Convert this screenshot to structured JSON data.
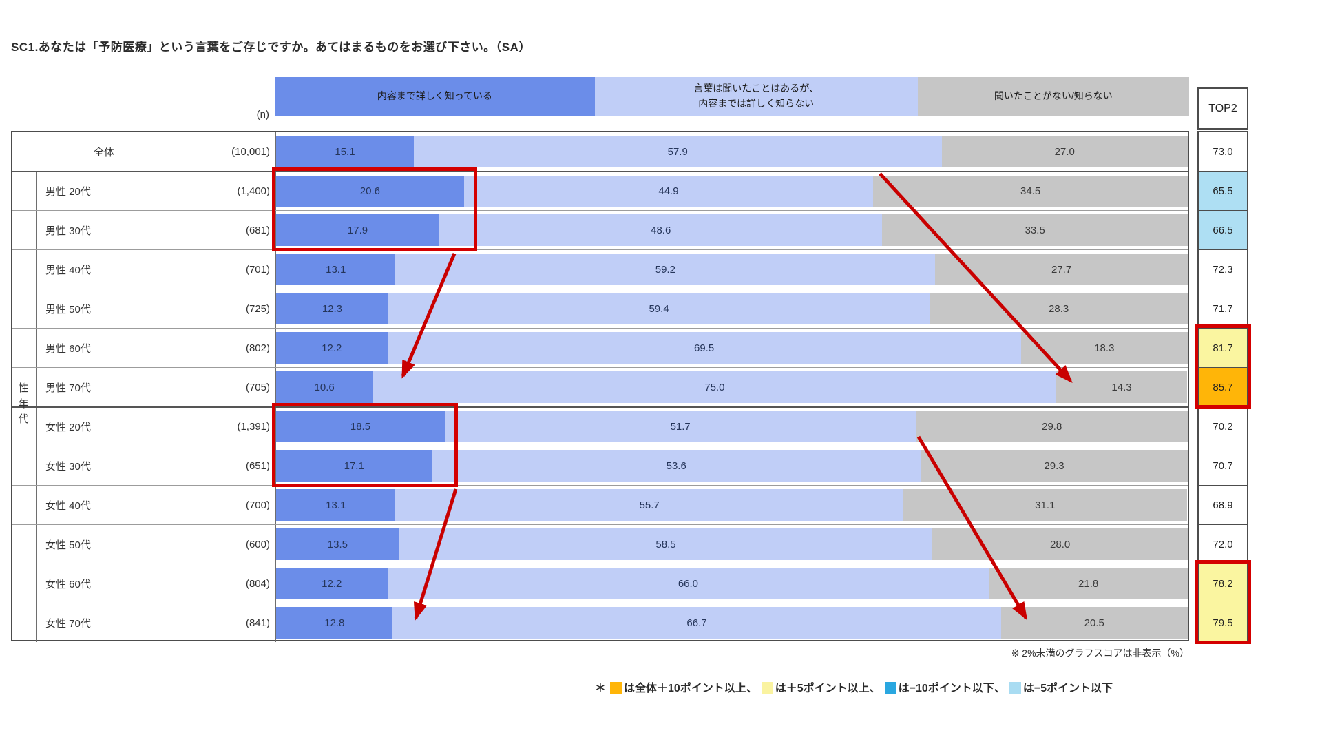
{
  "title": "SC1.あなたは「予防医療」という言葉をご存じですか。あてはまるものをお選び下さい。（SA）",
  "columns": {
    "n_label": "(n)",
    "top2_label": "TOP2"
  },
  "group_label": "性年代",
  "segments": [
    {
      "name": "know-well",
      "label_lines": [
        "内容まで詳しく知っている"
      ],
      "color": "#6b8de9",
      "header_width_pct": 35.0
    },
    {
      "name": "heard-but-not-detail",
      "label_lines": [
        "言葉は聞いたことはあるが、",
        "内容までは詳しく知らない"
      ],
      "color": "#c0cef7",
      "header_width_pct": 35.3
    },
    {
      "name": "never-heard",
      "label_lines": [
        "聞いたことがない/知らない"
      ],
      "color": "#c6c6c6",
      "header_width_pct": 29.7
    }
  ],
  "rows": [
    {
      "label": "全体",
      "n": "(10,001)",
      "values": [
        "15.1",
        "57.9",
        "27.0"
      ],
      "top2": "73.0",
      "top2_style": "none"
    },
    {
      "label": "男性 20代",
      "n": "(1,400)",
      "values": [
        "20.6",
        "44.9",
        "34.5"
      ],
      "top2": "65.5",
      "top2_style": "blue"
    },
    {
      "label": "男性 30代",
      "n": "(681)",
      "values": [
        "17.9",
        "48.6",
        "33.5"
      ],
      "top2": "66.5",
      "top2_style": "blue"
    },
    {
      "label": "男性 40代",
      "n": "(701)",
      "values": [
        "13.1",
        "59.2",
        "27.7"
      ],
      "top2": "72.3",
      "top2_style": "none"
    },
    {
      "label": "男性 50代",
      "n": "(725)",
      "values": [
        "12.3",
        "59.4",
        "28.3"
      ],
      "top2": "71.7",
      "top2_style": "none"
    },
    {
      "label": "男性 60代",
      "n": "(802)",
      "values": [
        "12.2",
        "69.5",
        "18.3"
      ],
      "top2": "81.7",
      "top2_style": "yellow"
    },
    {
      "label": "男性 70代",
      "n": "(705)",
      "values": [
        "10.6",
        "75.0",
        "14.3"
      ],
      "top2": "85.7",
      "top2_style": "orange"
    },
    {
      "label": "女性 20代",
      "n": "(1,391)",
      "values": [
        "18.5",
        "51.7",
        "29.8"
      ],
      "top2": "70.2",
      "top2_style": "none"
    },
    {
      "label": "女性 30代",
      "n": "(651)",
      "values": [
        "17.1",
        "53.6",
        "29.3"
      ],
      "top2": "70.7",
      "top2_style": "none"
    },
    {
      "label": "女性 40代",
      "n": "(700)",
      "values": [
        "13.1",
        "55.7",
        "31.1"
      ],
      "top2": "68.9",
      "top2_style": "none"
    },
    {
      "label": "女性 50代",
      "n": "(600)",
      "values": [
        "13.5",
        "58.5",
        "28.0"
      ],
      "top2": "72.0",
      "top2_style": "none"
    },
    {
      "label": "女性 60代",
      "n": "(804)",
      "values": [
        "12.2",
        "66.0",
        "21.8"
      ],
      "top2": "78.2",
      "top2_style": "yellow"
    },
    {
      "label": "女性 70代",
      "n": "(841)",
      "values": [
        "12.8",
        "66.7",
        "20.5"
      ],
      "top2": "79.5",
      "top2_style": "yellow"
    }
  ],
  "footnote": "※ 2%未満のグラフスコアは非表示（%）",
  "legend": {
    "prefix": "＊",
    "items": [
      {
        "color": "#ffb508",
        "text": "は全体＋10ポイント以上、"
      },
      {
        "color": "#faf3a0",
        "text": "は＋5ポイント以上、"
      },
      {
        "color": "#2aa7e0",
        "text": "は−10ポイント以下、"
      },
      {
        "color": "#a9dcf2",
        "text": "は−5ポイント以下"
      }
    ]
  },
  "highlight_colors": {
    "top2_blue": "#aedff3",
    "top2_yellow": "#faf5a0",
    "top2_orange": "#ffb508",
    "annotation_red": "#d40000"
  },
  "chart_data": {
    "type": "bar",
    "orientation": "horizontal-stacked-100pct",
    "title": "SC1.あなたは「予防医療」という言葉をご存じですか。あてはまるものをお選び下さい。（SA）",
    "categories": [
      "全体",
      "男性 20代",
      "男性 30代",
      "男性 40代",
      "男性 50代",
      "男性 60代",
      "男性 70代",
      "女性 20代",
      "女性 30代",
      "女性 40代",
      "女性 50代",
      "女性 60代",
      "女性 70代"
    ],
    "n": [
      10001,
      1400,
      681,
      701,
      725,
      802,
      705,
      1391,
      651,
      700,
      600,
      804,
      841
    ],
    "series": [
      {
        "name": "内容まで詳しく知っている",
        "color": "#6b8de9",
        "values": [
          15.1,
          20.6,
          17.9,
          13.1,
          12.3,
          12.2,
          10.6,
          18.5,
          17.1,
          13.1,
          13.5,
          12.2,
          12.8
        ]
      },
      {
        "name": "言葉は聞いたことはあるが、内容までは詳しく知らない",
        "color": "#c0cef7",
        "values": [
          57.9,
          44.9,
          48.6,
          59.2,
          59.4,
          69.5,
          75.0,
          51.7,
          53.6,
          55.7,
          58.5,
          66.0,
          66.7
        ]
      },
      {
        "name": "聞いたことがない/知らない",
        "color": "#c6c6c6",
        "values": [
          27.0,
          34.5,
          33.5,
          27.7,
          28.3,
          18.3,
          14.3,
          29.8,
          29.3,
          31.1,
          28.0,
          21.8,
          20.5
        ]
      }
    ],
    "top2": [
      73.0,
      65.5,
      66.5,
      72.3,
      71.7,
      81.7,
      85.7,
      70.2,
      70.7,
      68.9,
      72.0,
      78.2,
      79.5
    ],
    "xlim": [
      0,
      100
    ],
    "unit": "%",
    "note": "※ 2%未満のグラフスコアは非表示（%）",
    "legend_position": "top-as-column-headers"
  }
}
